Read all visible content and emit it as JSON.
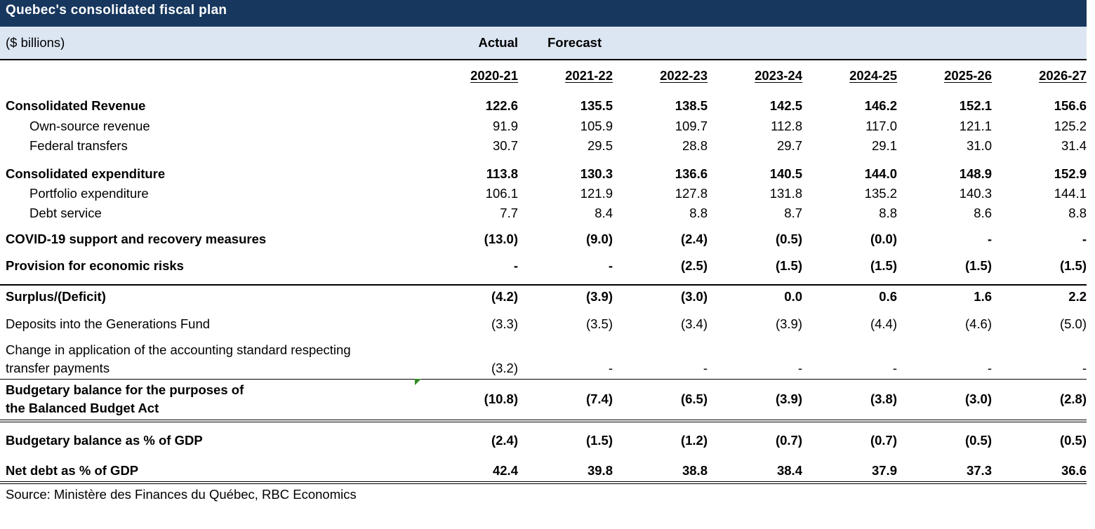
{
  "title": "Quebec's consolidated fiscal plan",
  "units": "($ billions)",
  "header": {
    "actual": "Actual",
    "forecast": "Forecast"
  },
  "years": [
    "2020-21",
    "2021-22",
    "2022-23",
    "2023-24",
    "2024-25",
    "2025-26",
    "2026-27"
  ],
  "rows": [
    {
      "label": "Consolidated Revenue",
      "values": [
        "122.6",
        "135.5",
        "138.5",
        "142.5",
        "146.2",
        "152.1",
        "156.6"
      ]
    },
    {
      "label": "Own-source revenue",
      "values": [
        "91.9",
        "105.9",
        "109.7",
        "112.8",
        "117.0",
        "121.1",
        "125.2"
      ]
    },
    {
      "label": "Federal transfers",
      "values": [
        "30.7",
        "29.5",
        "28.8",
        "29.7",
        "29.1",
        "31.0",
        "31.4"
      ]
    },
    {
      "label": "Consolidated expenditure",
      "values": [
        "113.8",
        "130.3",
        "136.6",
        "140.5",
        "144.0",
        "148.9",
        "152.9"
      ]
    },
    {
      "label": "Portfolio expenditure",
      "values": [
        "106.1",
        "121.9",
        "127.8",
        "131.8",
        "135.2",
        "140.3",
        "144.1"
      ]
    },
    {
      "label": "Debt service",
      "values": [
        "7.7",
        "8.4",
        "8.8",
        "8.7",
        "8.8",
        "8.6",
        "8.8"
      ]
    },
    {
      "label": "COVID-19 support and recovery measures",
      "values": [
        "(13.0)",
        "(9.0)",
        "(2.4)",
        "(0.5)",
        "(0.0)",
        "-",
        "-"
      ]
    },
    {
      "label": "Provision for economic risks",
      "values": [
        "-",
        "-",
        "(2.5)",
        "(1.5)",
        "(1.5)",
        "(1.5)",
        "(1.5)"
      ]
    },
    {
      "label": "Surplus/(Deficit)",
      "values": [
        "(4.2)",
        "(3.9)",
        "(3.0)",
        "0.0",
        "0.6",
        "1.6",
        "2.2"
      ]
    },
    {
      "label": "Deposits into the Generations Fund",
      "values": [
        "(3.3)",
        "(3.5)",
        "(3.4)",
        "(3.9)",
        "(4.4)",
        "(4.6)",
        "(5.0)"
      ]
    },
    {
      "label_line1": "Change in application of the accounting standard respecting",
      "label_line2": "transfer payments",
      "values": [
        "(3.2)",
        "-",
        "-",
        "-",
        "-",
        "-",
        "-"
      ]
    },
    {
      "label_line1": "Budgetary balance for the purposes of",
      "label_line2": "the Balanced Budget Act",
      "values": [
        "(10.8)",
        "(7.4)",
        "(6.5)",
        "(3.9)",
        "(3.8)",
        "(3.0)",
        "(2.8)"
      ]
    },
    {
      "label": "Budgetary balance as % of GDP",
      "values": [
        "(2.4)",
        "(1.5)",
        "(1.2)",
        "(0.7)",
        "(0.7)",
        "(0.5)",
        "(0.5)"
      ]
    },
    {
      "label": "Net debt as % of GDP",
      "values": [
        "42.4",
        "39.8",
        "38.8",
        "38.4",
        "37.9",
        "37.3",
        "36.6"
      ]
    }
  ],
  "source": "Source: Ministère des Finances du Québec, RBC Economics"
}
